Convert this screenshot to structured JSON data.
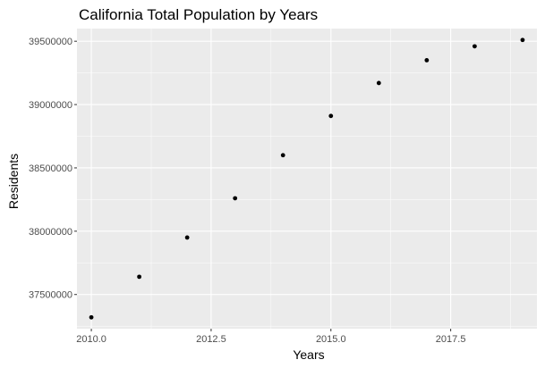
{
  "chart_data": {
    "type": "scatter",
    "title": "California Total Population by Years",
    "xlabel": "Years",
    "ylabel": "Residents",
    "x": [
      2010,
      2011,
      2012,
      2013,
      2014,
      2015,
      2016,
      2017,
      2018,
      2019
    ],
    "y": [
      37320000,
      37640000,
      37950000,
      38260000,
      38600000,
      38910000,
      39170000,
      39350000,
      39460000,
      39510000
    ],
    "xlim": [
      2009.7,
      2019.3
    ],
    "ylim": [
      37230000,
      39600000
    ],
    "x_ticks": [
      2010.0,
      2012.5,
      2015.0,
      2017.5
    ],
    "x_tick_labels": [
      "2010.0",
      "2012.5",
      "2015.0",
      "2017.5"
    ],
    "y_ticks": [
      37500000,
      38000000,
      38500000,
      39000000,
      39500000
    ],
    "y_tick_labels": [
      "37500000",
      "38000000",
      "38500000",
      "39000000",
      "39500000"
    ],
    "grid": true,
    "colors": {
      "panel": "#ebebeb",
      "grid": "#ffffff",
      "point": "#000000",
      "tick_text": "#4d4d4d"
    }
  }
}
